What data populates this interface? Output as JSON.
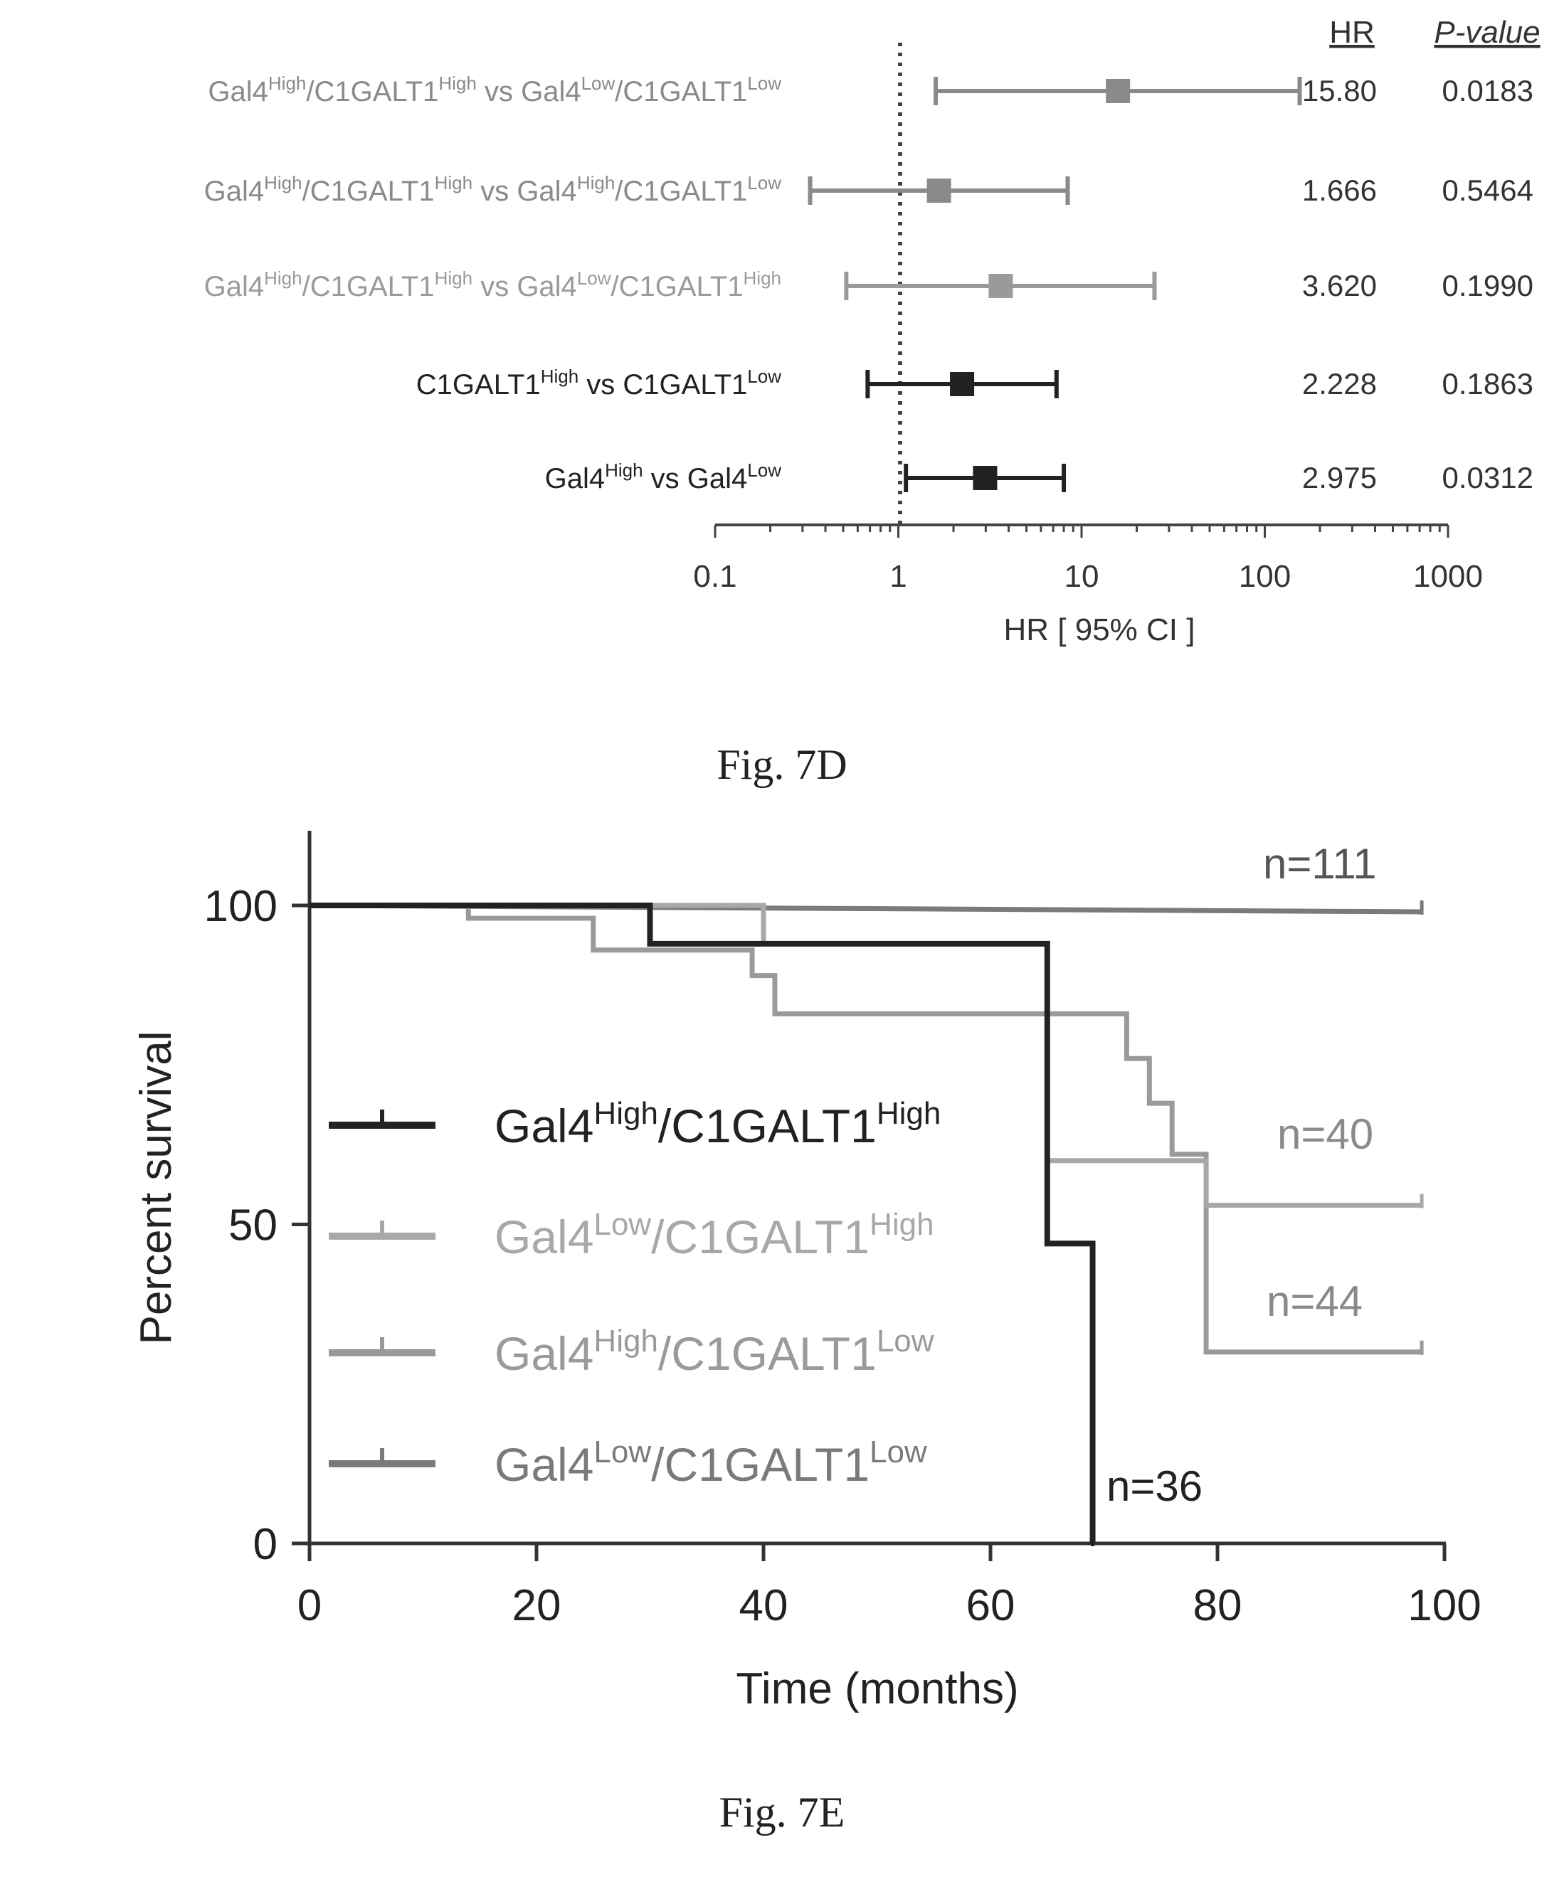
{
  "forest": {
    "hr_header": "HR",
    "p_header": "P-value",
    "xaxis_label": "HR [ 95% CI ]",
    "ticks": [
      "0.1",
      "1",
      "10",
      "100",
      "1000"
    ],
    "caption": "Fig. 7D",
    "rows": [
      {
        "left_a": "Gal4",
        "left_a_sup": "High",
        "left_b": "/C1GALT1",
        "left_b_sup": "High",
        "vs": " vs ",
        "right_a": "Gal4",
        "right_a_sup": "Low",
        "right_b": "/C1GALT1",
        "right_b_sup": "Low",
        "hr": "15.80",
        "p": "0.0183",
        "color": "#8a8a8a"
      },
      {
        "left_a": "Gal4",
        "left_a_sup": "High",
        "left_b": "/C1GALT1",
        "left_b_sup": "High",
        "vs": " vs ",
        "right_a": "Gal4",
        "right_a_sup": "High",
        "right_b": "/C1GALT1",
        "right_b_sup": "Low",
        "hr": "1.666",
        "p": "0.5464",
        "color": "#8a8a8a"
      },
      {
        "left_a": "Gal4",
        "left_a_sup": "High",
        "left_b": "/C1GALT1",
        "left_b_sup": "High",
        "vs": " vs ",
        "right_a": "Gal4",
        "right_a_sup": "Low",
        "right_b": "/C1GALT1",
        "right_b_sup": "High",
        "hr": "3.620",
        "p": "0.1990",
        "color": "#9a9a9a"
      },
      {
        "left_a": "C1GALT1",
        "left_a_sup": "High",
        "left_b": "",
        "left_b_sup": "",
        "vs": " vs ",
        "right_a": "C1GALT1",
        "right_a_sup": "Low",
        "right_b": "",
        "right_b_sup": "",
        "hr": "2.228",
        "p": "0.1863",
        "color": "#222222"
      },
      {
        "left_a": "Gal4",
        "left_a_sup": "High",
        "left_b": "",
        "left_b_sup": "",
        "vs": " vs ",
        "right_a": "Gal4",
        "right_a_sup": "Low",
        "right_b": "",
        "right_b_sup": "",
        "hr": "2.975",
        "p": "0.0312",
        "color": "#222222"
      }
    ]
  },
  "survival": {
    "ylabel": "Percent survival",
    "xlabel": "Time (months)",
    "yticks": [
      "0",
      "50",
      "100"
    ],
    "xticks": [
      "0",
      "20",
      "40",
      "60",
      "80",
      "100"
    ],
    "caption": "Fig. 7E",
    "legend": [
      {
        "a": "Gal4",
        "a_sup": "High",
        "b": "/C1GALT1",
        "b_sup": "High",
        "color": "#222222"
      },
      {
        "a": "Gal4",
        "a_sup": "Low",
        "b": "/C1GALT1",
        "b_sup": "High",
        "color": "#a8a8a8"
      },
      {
        "a": "Gal4",
        "a_sup": "High",
        "b": "/C1GALT1",
        "b_sup": "Low",
        "color": "#9a9a9a"
      },
      {
        "a": "Gal4",
        "a_sup": "Low",
        "b": "/C1GALT1",
        "b_sup": "Low",
        "color": "#7a7a7a"
      }
    ],
    "n_labels": [
      "n=111",
      "n=40",
      "n=44",
      "n=36"
    ]
  },
  "chart_data": [
    {
      "type": "forest",
      "xlabel": "HR [ 95% CI ]",
      "xscale": "log",
      "xlim": [
        0.1,
        1000
      ],
      "reference_line": 1,
      "rows": [
        {
          "label": "Gal4High/C1GALT1High vs Gal4Low/C1GALT1Low",
          "hr": 15.8,
          "ci": [
            1.6,
            155
          ],
          "p": 0.0183
        },
        {
          "label": "Gal4High/C1GALT1High vs Gal4High/C1GALT1Low",
          "hr": 1.666,
          "ci": [
            0.33,
            8.4
          ],
          "p": 0.5464
        },
        {
          "label": "Gal4High/C1GALT1High vs Gal4Low/C1GALT1High",
          "hr": 3.62,
          "ci": [
            0.52,
            25
          ],
          "p": 0.199
        },
        {
          "label": "C1GALT1High vs C1GALT1Low",
          "hr": 2.228,
          "ci": [
            0.68,
            7.3
          ],
          "p": 0.1863
        },
        {
          "label": "Gal4High vs Gal4Low",
          "hr": 2.975,
          "ci": [
            1.1,
            8.0
          ],
          "p": 0.0312
        }
      ]
    },
    {
      "type": "line",
      "subtype": "kaplan-meier",
      "xlabel": "Time (months)",
      "ylabel": "Percent survival",
      "xlim": [
        0,
        100
      ],
      "ylim": [
        0,
        100
      ],
      "series": [
        {
          "name": "Gal4High/C1GALT1High",
          "n": 36,
          "x": [
            0,
            30,
            30,
            65,
            65,
            69,
            69
          ],
          "y": [
            100,
            100,
            94,
            94,
            47,
            47,
            0
          ]
        },
        {
          "name": "Gal4Low/C1GALT1High",
          "n": 40,
          "x": [
            0,
            40,
            40,
            65,
            65,
            79,
            79,
            98
          ],
          "y": [
            100,
            100,
            94,
            94,
            60,
            60,
            53,
            53
          ]
        },
        {
          "name": "Gal4High/C1GALT1Low",
          "n": 44,
          "x": [
            0,
            14,
            14,
            25,
            25,
            39,
            39,
            41,
            41,
            65,
            65,
            72,
            72,
            74,
            74,
            76,
            76,
            79,
            79,
            98
          ],
          "y": [
            100,
            100,
            98,
            98,
            93,
            93,
            89,
            89,
            83,
            83,
            83,
            83,
            76,
            76,
            69,
            69,
            61,
            61,
            30,
            30
          ]
        },
        {
          "name": "Gal4Low/C1GALT1Low",
          "n": 111,
          "x": [
            0,
            98
          ],
          "y": [
            100,
            99
          ]
        }
      ]
    }
  ]
}
